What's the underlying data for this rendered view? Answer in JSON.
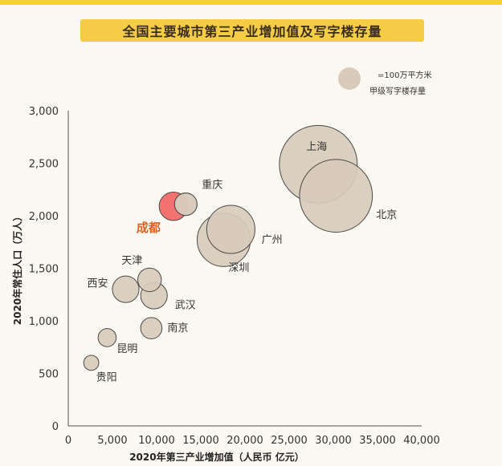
{
  "chart_data": {
    "type": "bubble",
    "title": "全国主要城市第三产业增加值及写字楼存量",
    "xlabel": "2020年第三产业增加值（人民币 亿元）",
    "ylabel": "2020年常住人口（万人）",
    "xlim": [
      0,
      40000
    ],
    "ylim": [
      0,
      3000
    ],
    "x_ticks": [
      0,
      5000,
      10000,
      15000,
      20000,
      25000,
      30000,
      35000,
      40000
    ],
    "x_tick_labels": [
      "0",
      "5,000",
      "10,000",
      "15,000",
      "20,000",
      "25,000",
      "30,000",
      "35,000",
      "40,000"
    ],
    "y_ticks": [
      0,
      500,
      1000,
      1500,
      2000,
      2500,
      3000
    ],
    "y_tick_labels": [
      "0",
      "500",
      "1,000",
      "1,500",
      "2,000",
      "2,500",
      "3,000"
    ],
    "grid": false,
    "legend": {
      "placement": "top-right",
      "line1": "=100万平方米",
      "line2": "甲级写字楼存量",
      "marker_value": 1
    },
    "colors": {
      "bubble": "#d8cbbb",
      "bubble_stroke": "#4a4a4a",
      "highlight": "#f26b6b",
      "highlight_label": "#e0621e"
    },
    "points": [
      {
        "name": "上海",
        "x": 28300,
        "y": 2490,
        "size": 12.0,
        "label_dx": -2,
        "label_dy": -18,
        "anchor": "middle"
      },
      {
        "name": "北京",
        "x": 30300,
        "y": 2190,
        "size": 10.5,
        "label_dx": 50,
        "label_dy": 28,
        "anchor": "start"
      },
      {
        "name": "广州",
        "x": 17600,
        "y": 1770,
        "size": 5.6,
        "label_dx": 47,
        "label_dy": 4,
        "anchor": "start"
      },
      {
        "name": "深圳",
        "x": 18400,
        "y": 1870,
        "size": 4.6,
        "label_dx": 10,
        "label_dy": 52,
        "anchor": "middle"
      },
      {
        "name": "重庆",
        "x": 13300,
        "y": 2110,
        "size": 1.0,
        "label_dx": 20,
        "label_dy": -20,
        "anchor": "start"
      },
      {
        "name": "成都",
        "x": 11900,
        "y": 2090,
        "size": 1.6,
        "label_dx": -31,
        "label_dy": 32,
        "anchor": "middle",
        "highlight": true
      },
      {
        "name": "天津",
        "x": 9200,
        "y": 1390,
        "size": 1.1,
        "label_dx": -22,
        "label_dy": -20,
        "anchor": "middle"
      },
      {
        "name": "武汉",
        "x": 9700,
        "y": 1240,
        "size": 1.4,
        "label_dx": 26,
        "label_dy": 16,
        "anchor": "start"
      },
      {
        "name": "西安",
        "x": 6500,
        "y": 1300,
        "size": 1.4,
        "label_dx": -48,
        "label_dy": -3,
        "anchor": "start"
      },
      {
        "name": "南京",
        "x": 9400,
        "y": 930,
        "size": 0.9,
        "label_dx": 20,
        "label_dy": 4,
        "anchor": "start"
      },
      {
        "name": "昆明",
        "x": 4400,
        "y": 840,
        "size": 0.65,
        "label_dx": 12,
        "label_dy": 18,
        "anchor": "start"
      },
      {
        "name": "贵阳",
        "x": 2600,
        "y": 600,
        "size": 0.45,
        "label_dx": 6,
        "label_dy": 22,
        "anchor": "start"
      }
    ]
  }
}
